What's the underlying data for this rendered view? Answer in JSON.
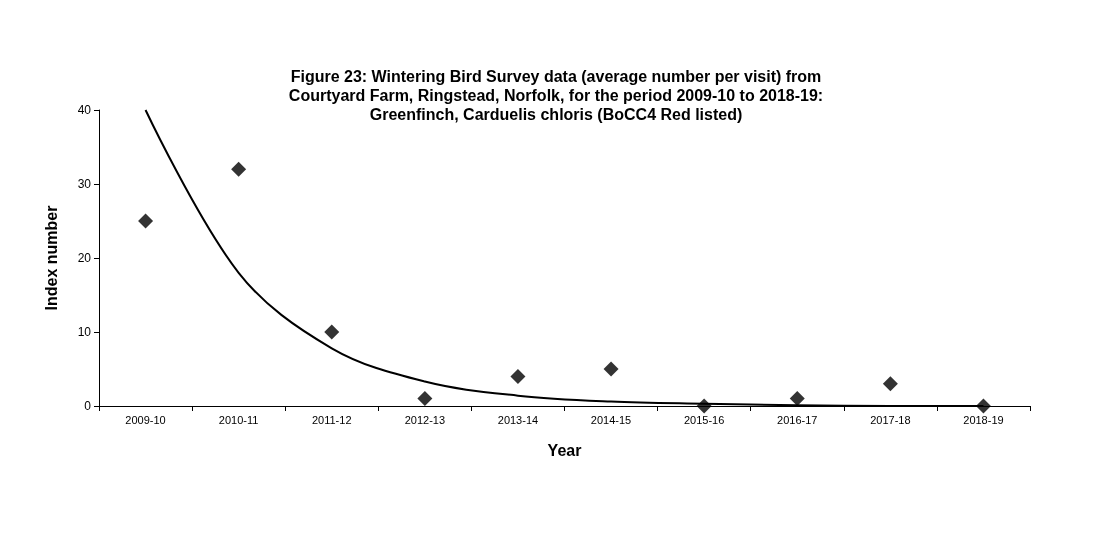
{
  "chart_data": {
    "type": "scatter",
    "title": "Figure 23: Wintering Bird Survey data (average number per visit) from\nCourtyard Farm, Ringstead, Norfolk, for the period 2009-10 to 2018-19:\nGreenfinch, Carduelis chloris (BoCC4 Red listed)",
    "xlabel": "Year",
    "ylabel": "Index number",
    "categories": [
      "2009-10",
      "2010-11",
      "2011-12",
      "2012-13",
      "2013-14",
      "2014-15",
      "2015-16",
      "2016-17",
      "2017-18",
      "2018-19"
    ],
    "series": [
      {
        "color": "#000000",
        "marker": "diamond",
        "values": [
          25,
          32,
          10,
          1,
          4,
          5,
          0,
          1,
          3,
          0
        ]
      },
      {
        "type": "line",
        "color": "#000000",
        "marker": "none",
        "line_style": "solid",
        "values": [
          40,
          18,
          7.8,
          3.3,
          1.4,
          0.6,
          0.3,
          0.1,
          0,
          0
        ]
      }
    ],
    "ylim": [
      0,
      40
    ],
    "yticks": [
      0,
      10,
      20,
      30,
      40
    ],
    "grid": false
  }
}
